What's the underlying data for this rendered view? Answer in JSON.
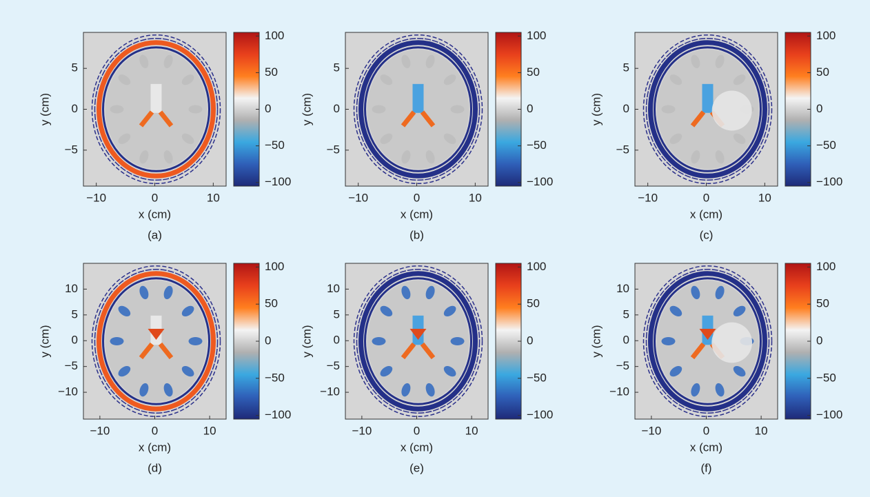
{
  "chart_data": [
    {
      "type": "image",
      "caption": "(a)",
      "xlabel": "x (cm)",
      "ylabel": "y (cm)",
      "xlim": [
        -12.2,
        12.2
      ],
      "ylim": [
        -9.4,
        9.4
      ],
      "xticks": [
        {
          "value": -10,
          "label": "−10"
        },
        0,
        10
      ],
      "yticks": [
        {
          "value": -5,
          "label": "−5"
        },
        0,
        5
      ],
      "colorbar": {
        "lim": [
          -105,
          105
        ],
        "ticks": [
          {
            "value": -100,
            "label": "−100"
          },
          {
            "value": -50,
            "label": "−50"
          },
          0,
          50,
          100
        ],
        "colors": [
          "#1e2a78",
          "#2f5fb8",
          "#3aa8e0",
          "#b0b0b0",
          "#f4f4f4",
          "#ff7f1f",
          "#e8401c",
          "#b01515"
        ]
      }
    },
    {
      "type": "image",
      "caption": "(b)",
      "xlabel": "x (cm)",
      "ylabel": "y (cm)",
      "xlim": [
        -12.2,
        12.2
      ],
      "ylim": [
        -9.4,
        9.4
      ],
      "xticks": [
        {
          "value": -10,
          "label": "−10"
        },
        0,
        10
      ],
      "yticks": [
        {
          "value": -5,
          "label": "−5"
        },
        0,
        5
      ],
      "colorbar": {
        "lim": [
          -105,
          105
        ],
        "ticks": [
          {
            "value": -100,
            "label": "−100"
          },
          {
            "value": -50,
            "label": "−50"
          },
          0,
          50,
          100
        ],
        "colors": [
          "#1e2a78",
          "#2f5fb8",
          "#3aa8e0",
          "#b0b0b0",
          "#f4f4f4",
          "#ff7f1f",
          "#e8401c",
          "#b01515"
        ]
      }
    },
    {
      "type": "image",
      "caption": "(c)",
      "xlabel": "x (cm)",
      "ylabel": "y (cm)",
      "xlim": [
        -12.2,
        12.2
      ],
      "ylim": [
        -9.4,
        9.4
      ],
      "xticks": [
        {
          "value": -10,
          "label": "−10"
        },
        0,
        10
      ],
      "yticks": [
        {
          "value": -5,
          "label": "−5"
        },
        0,
        5
      ],
      "colorbar": {
        "lim": [
          -105,
          105
        ],
        "ticks": [
          {
            "value": -100,
            "label": "−100"
          },
          {
            "value": -50,
            "label": "−50"
          },
          0,
          50,
          100
        ],
        "colors": [
          "#1e2a78",
          "#2f5fb8",
          "#3aa8e0",
          "#b0b0b0",
          "#f4f4f4",
          "#ff7f1f",
          "#e8401c",
          "#b01515"
        ]
      }
    },
    {
      "type": "image",
      "caption": "(d)",
      "xlabel": "x (cm)",
      "ylabel": "y (cm)",
      "xlim": [
        -13,
        13
      ],
      "ylim": [
        -15.2,
        15
      ],
      "xticks": [
        {
          "value": -10,
          "label": "−10"
        },
        0,
        10
      ],
      "yticks": [
        {
          "value": -10,
          "label": "−10"
        },
        {
          "value": -5,
          "label": "−5"
        },
        0,
        5,
        10
      ],
      "colorbar": {
        "lim": [
          -105,
          105
        ],
        "ticks": [
          {
            "value": -100,
            "label": "−100"
          },
          {
            "value": -50,
            "label": "−50"
          },
          0,
          50,
          100
        ],
        "colors": [
          "#1e2a78",
          "#2f5fb8",
          "#3aa8e0",
          "#b0b0b0",
          "#f4f4f4",
          "#ff7f1f",
          "#e8401c",
          "#b01515"
        ]
      }
    },
    {
      "type": "image",
      "caption": "(e)",
      "xlabel": "x (cm)",
      "ylabel": "y (cm)",
      "xlim": [
        -13,
        13
      ],
      "ylim": [
        -15.2,
        15
      ],
      "xticks": [
        {
          "value": -10,
          "label": "−10"
        },
        0,
        10
      ],
      "yticks": [
        {
          "value": -10,
          "label": "−10"
        },
        {
          "value": -5,
          "label": "−5"
        },
        0,
        5,
        10
      ],
      "colorbar": {
        "lim": [
          -105,
          105
        ],
        "ticks": [
          {
            "value": -100,
            "label": "−100"
          },
          {
            "value": -50,
            "label": "−50"
          },
          0,
          50,
          100
        ],
        "colors": [
          "#1e2a78",
          "#2f5fb8",
          "#3aa8e0",
          "#b0b0b0",
          "#f4f4f4",
          "#ff7f1f",
          "#e8401c",
          "#b01515"
        ]
      }
    },
    {
      "type": "image",
      "caption": "(f)",
      "xlabel": "x (cm)",
      "ylabel": "y (cm)",
      "xlim": [
        -13,
        13
      ],
      "ylim": [
        -15.2,
        15
      ],
      "xticks": [
        {
          "value": -10,
          "label": "−10"
        },
        0,
        10
      ],
      "yticks": [
        {
          "value": -10,
          "label": "−10"
        },
        {
          "value": -5,
          "label": "−5"
        },
        0,
        5,
        10
      ],
      "colorbar": {
        "lim": [
          -105,
          105
        ],
        "ticks": [
          {
            "value": -100,
            "label": "−100"
          },
          {
            "value": -50,
            "label": "−50"
          },
          0,
          50,
          100
        ],
        "colors": [
          "#1e2a78",
          "#2f5fb8",
          "#3aa8e0",
          "#b0b0b0",
          "#f4f4f4",
          "#ff7f1f",
          "#e8401c",
          "#b01515"
        ]
      }
    }
  ]
}
